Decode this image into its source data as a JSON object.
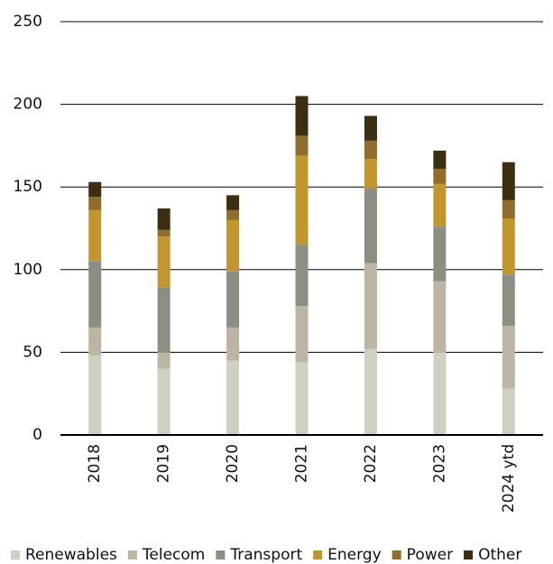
{
  "chart_data": {
    "type": "stacked_bar",
    "categories": [
      "2018",
      "2019",
      "2020",
      "2021",
      "2022",
      "2023",
      "2024 ytd"
    ],
    "series": [
      {
        "name": "Renewables",
        "color": "#d1cfc1",
        "values": [
          48,
          40,
          45,
          44,
          52,
          50,
          28
        ]
      },
      {
        "name": "Telecom",
        "color": "#bdb5a3",
        "values": [
          17,
          10,
          20,
          34,
          52,
          43,
          38
        ]
      },
      {
        "name": "Transport",
        "color": "#8d8e83",
        "values": [
          40,
          39,
          34,
          37,
          45,
          33,
          31
        ]
      },
      {
        "name": "Energy",
        "color": "#c2962f",
        "values": [
          31,
          31,
          31,
          54,
          18,
          26,
          34
        ]
      },
      {
        "name": "Power",
        "color": "#8e6d2d",
        "values": [
          8,
          4,
          6,
          12,
          11,
          9,
          11
        ]
      },
      {
        "name": "Other",
        "color": "#3a2e13",
        "values": [
          9,
          13,
          9,
          24,
          15,
          11,
          23
        ]
      }
    ],
    "ylim": [
      0,
      250
    ],
    "yticks": [
      0,
      50,
      100,
      150,
      200,
      250
    ],
    "grid": true,
    "legend": "bottom"
  }
}
